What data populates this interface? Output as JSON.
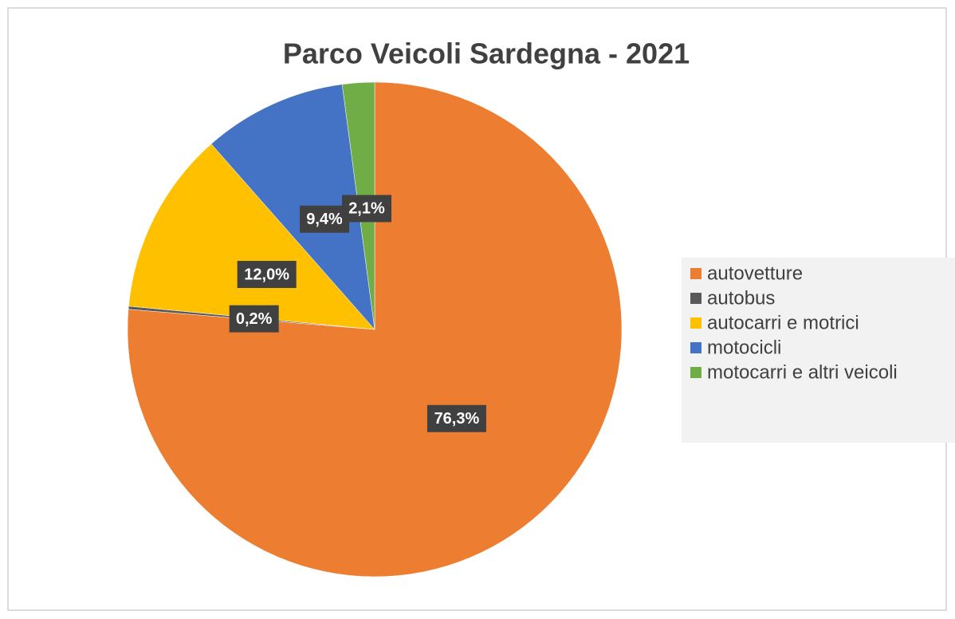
{
  "chart_data": {
    "type": "pie",
    "title": "Parco Veicoli Sardegna - 2021",
    "categories": [
      "autovetture",
      "autobus",
      "autocarri e motrici",
      "motocicli",
      "motocarri e altri veicoli"
    ],
    "values": [
      76.3,
      0.2,
      12.0,
      9.4,
      2.1
    ],
    "value_labels": [
      "76,3%",
      "0,2%",
      "12,0%",
      "9,4%",
      "2,1%"
    ],
    "colors": [
      "#ed7d31",
      "#595959",
      "#ffc000",
      "#4472c4",
      "#70ad47"
    ],
    "legend": "right"
  }
}
